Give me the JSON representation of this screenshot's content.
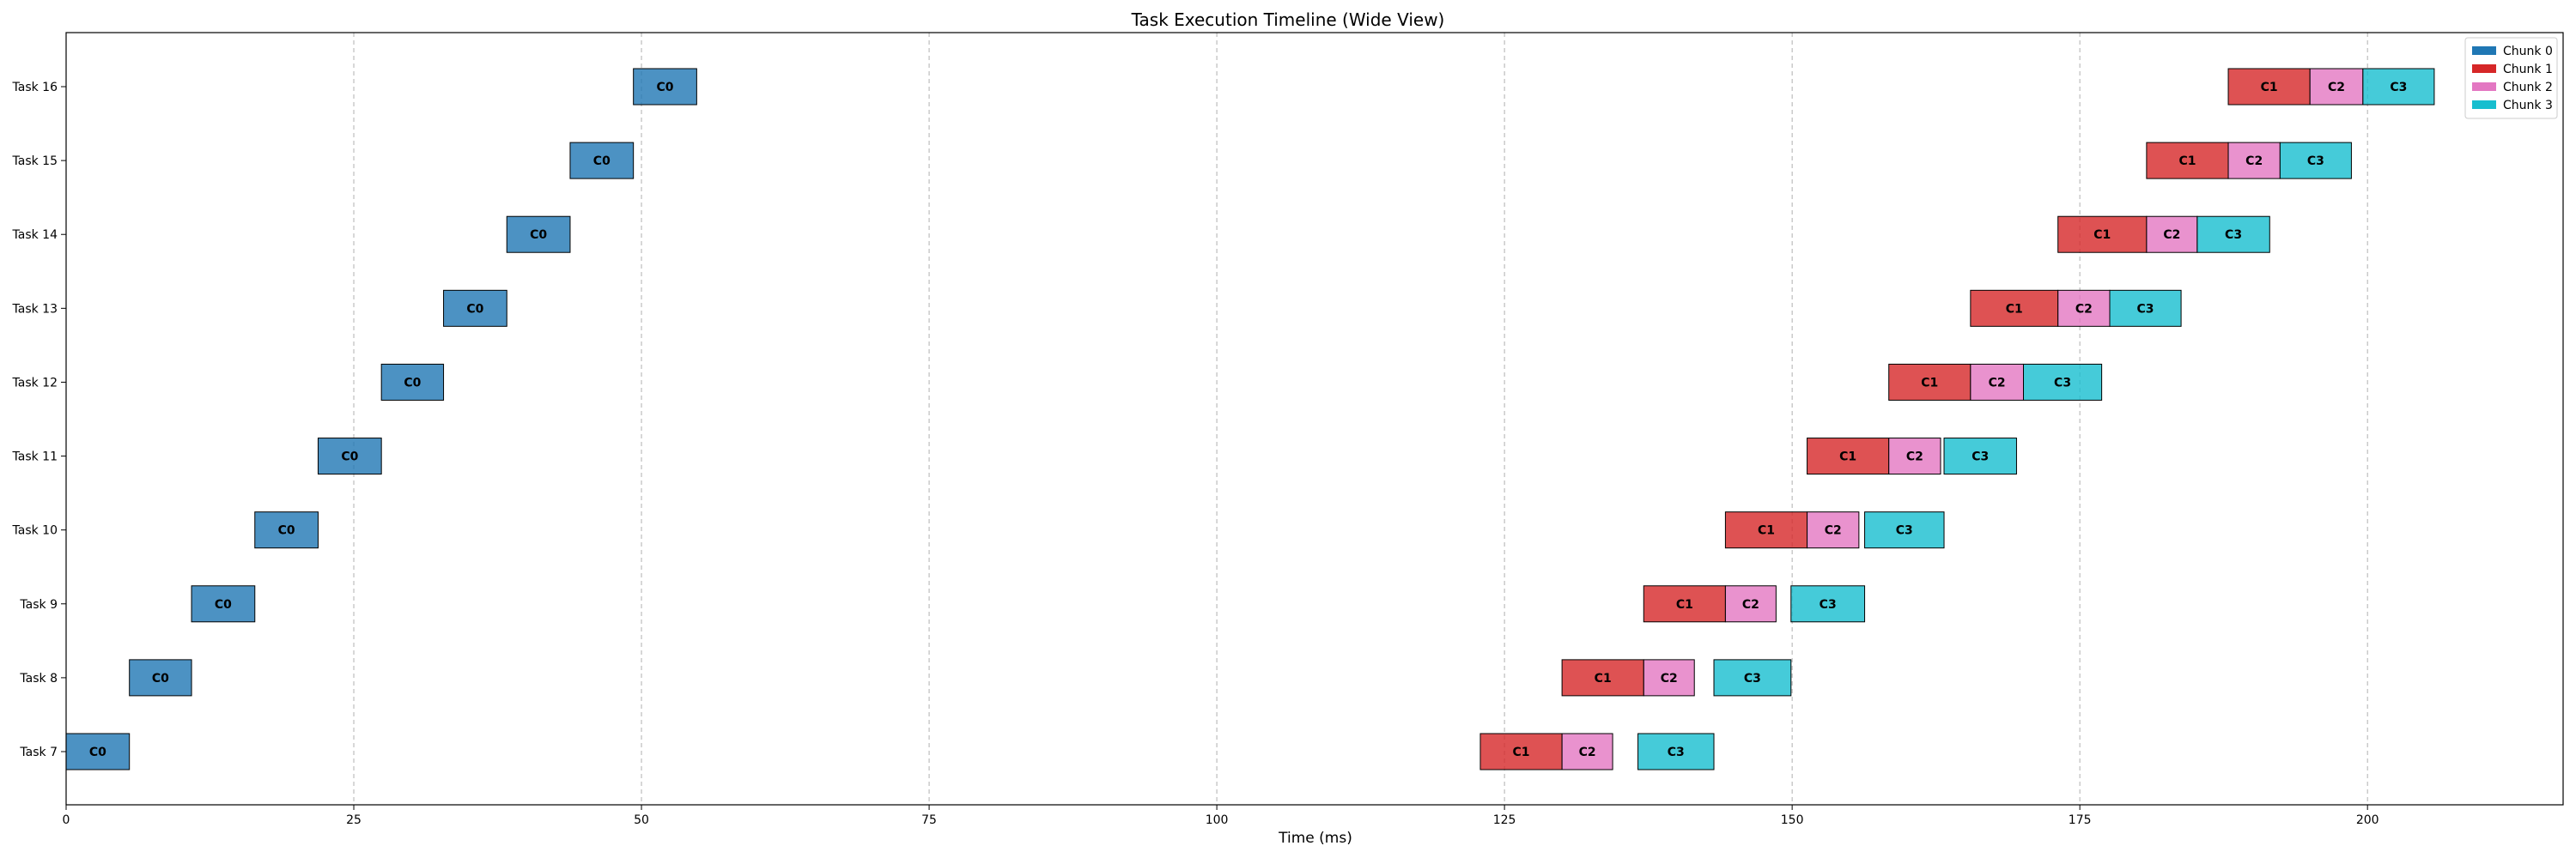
{
  "chart_data": {
    "type": "bar",
    "orientation": "horizontal",
    "title": "Task Execution Timeline (Wide View)",
    "xlabel": "Time (ms)",
    "ylabel": "",
    "xlim": [
      0,
      217
    ],
    "xticks": [
      0,
      25,
      50,
      75,
      100,
      125,
      150,
      175,
      200
    ],
    "grid": "x-dashed",
    "legend_position": "top-right",
    "categories": [
      "Task 7",
      "Task 8",
      "Task 9",
      "Task 10",
      "Task 11",
      "Task 12",
      "Task 13",
      "Task 14",
      "Task 15",
      "Task 16"
    ],
    "series": [
      {
        "name": "Chunk 0",
        "label": "C0",
        "color": "#1f77b4"
      },
      {
        "name": "Chunk 1",
        "label": "C1",
        "color": "#d62728"
      },
      {
        "name": "Chunk 2",
        "label": "C2",
        "color": "#e377c2"
      },
      {
        "name": "Chunk 3",
        "label": "C3",
        "color": "#17becf"
      }
    ],
    "segments": [
      {
        "task": "Task 7",
        "chunk": 0,
        "start": 0.0,
        "end": 5.5
      },
      {
        "task": "Task 7",
        "chunk": 1,
        "start": 122.9,
        "end": 130.0
      },
      {
        "task": "Task 7",
        "chunk": 2,
        "start": 130.0,
        "end": 134.4
      },
      {
        "task": "Task 7",
        "chunk": 3,
        "start": 136.6,
        "end": 143.2
      },
      {
        "task": "Task 8",
        "chunk": 0,
        "start": 5.5,
        "end": 10.9
      },
      {
        "task": "Task 8",
        "chunk": 1,
        "start": 130.0,
        "end": 137.1
      },
      {
        "task": "Task 8",
        "chunk": 2,
        "start": 137.1,
        "end": 141.5
      },
      {
        "task": "Task 8",
        "chunk": 3,
        "start": 143.2,
        "end": 149.9
      },
      {
        "task": "Task 9",
        "chunk": 0,
        "start": 10.9,
        "end": 16.4
      },
      {
        "task": "Task 9",
        "chunk": 1,
        "start": 137.1,
        "end": 144.2
      },
      {
        "task": "Task 9",
        "chunk": 2,
        "start": 144.2,
        "end": 148.6
      },
      {
        "task": "Task 9",
        "chunk": 3,
        "start": 149.9,
        "end": 156.3
      },
      {
        "task": "Task 10",
        "chunk": 0,
        "start": 16.4,
        "end": 21.9
      },
      {
        "task": "Task 10",
        "chunk": 1,
        "start": 144.2,
        "end": 151.3
      },
      {
        "task": "Task 10",
        "chunk": 2,
        "start": 151.3,
        "end": 155.8
      },
      {
        "task": "Task 10",
        "chunk": 3,
        "start": 156.3,
        "end": 163.2
      },
      {
        "task": "Task 11",
        "chunk": 0,
        "start": 21.9,
        "end": 27.4
      },
      {
        "task": "Task 11",
        "chunk": 1,
        "start": 151.3,
        "end": 158.4
      },
      {
        "task": "Task 11",
        "chunk": 2,
        "start": 158.4,
        "end": 162.9
      },
      {
        "task": "Task 11",
        "chunk": 3,
        "start": 163.2,
        "end": 169.5
      },
      {
        "task": "Task 12",
        "chunk": 0,
        "start": 27.4,
        "end": 32.8
      },
      {
        "task": "Task 12",
        "chunk": 1,
        "start": 158.4,
        "end": 165.5
      },
      {
        "task": "Task 12",
        "chunk": 2,
        "start": 165.5,
        "end": 170.1
      },
      {
        "task": "Task 12",
        "chunk": 3,
        "start": 170.1,
        "end": 176.9
      },
      {
        "task": "Task 13",
        "chunk": 0,
        "start": 32.8,
        "end": 38.3
      },
      {
        "task": "Task 13",
        "chunk": 1,
        "start": 165.5,
        "end": 173.1
      },
      {
        "task": "Task 13",
        "chunk": 2,
        "start": 173.1,
        "end": 177.6
      },
      {
        "task": "Task 13",
        "chunk": 3,
        "start": 177.6,
        "end": 183.8
      },
      {
        "task": "Task 14",
        "chunk": 0,
        "start": 38.3,
        "end": 43.8
      },
      {
        "task": "Task 14",
        "chunk": 1,
        "start": 173.1,
        "end": 180.8
      },
      {
        "task": "Task 14",
        "chunk": 2,
        "start": 180.8,
        "end": 185.2
      },
      {
        "task": "Task 14",
        "chunk": 3,
        "start": 185.2,
        "end": 191.5
      },
      {
        "task": "Task 15",
        "chunk": 0,
        "start": 43.8,
        "end": 49.3
      },
      {
        "task": "Task 15",
        "chunk": 1,
        "start": 180.8,
        "end": 187.9
      },
      {
        "task": "Task 15",
        "chunk": 2,
        "start": 187.9,
        "end": 192.4
      },
      {
        "task": "Task 15",
        "chunk": 3,
        "start": 192.4,
        "end": 198.6
      },
      {
        "task": "Task 16",
        "chunk": 0,
        "start": 49.3,
        "end": 54.8
      },
      {
        "task": "Task 16",
        "chunk": 1,
        "start": 187.9,
        "end": 195.0
      },
      {
        "task": "Task 16",
        "chunk": 2,
        "start": 195.0,
        "end": 199.6
      },
      {
        "task": "Task 16",
        "chunk": 3,
        "start": 199.6,
        "end": 205.8
      }
    ]
  }
}
